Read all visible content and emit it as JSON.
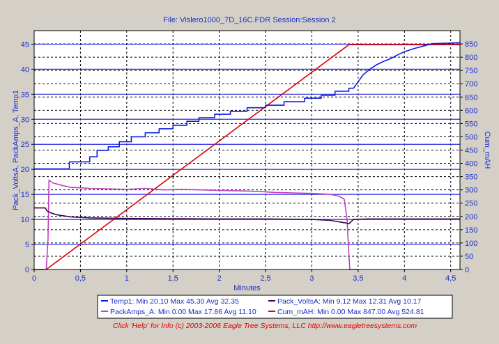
{
  "title": "File: Vislero1000_7D_16C.FDR   Session:Session 2",
  "footer": "Click 'Help' for Info  (c) 2003-2006 Eagle Tree Systems, LLC     http://www.eagletreesystems.com",
  "chart_data": {
    "type": "line",
    "xlabel": "Minutes",
    "ylabel_left": "Pack_VoltsA, PackAmps_A, Temp1",
    "ylabel_right": "Cum_mAH",
    "xlim": [
      0,
      4.6
    ],
    "ylim_left": [
      0,
      47.7
    ],
    "ylim_right": [
      0,
      900
    ],
    "x_ticks": [
      0,
      0.5,
      1,
      1.5,
      2,
      2.5,
      3,
      3.5,
      4,
      4.5
    ],
    "x_tick_labels": [
      "0",
      "0,5",
      "1",
      "1,5",
      "2",
      "2,5",
      "3",
      "3,5",
      "4",
      "4,5"
    ],
    "y_left_ticks": [
      0,
      5,
      10,
      15,
      20,
      25,
      30,
      35,
      40,
      45
    ],
    "y_right_ticks": [
      0,
      50,
      100,
      150,
      200,
      250,
      300,
      350,
      400,
      450,
      500,
      550,
      600,
      650,
      700,
      750,
      800,
      850
    ],
    "grid": true,
    "legend_position": "bottom",
    "colors": {
      "plot_bg": "#ffffff",
      "axis_text": "#1a2fc8",
      "major_grid": "#2a2ae0",
      "minor_grid": "#000000",
      "frame": "#000000"
    },
    "series": [
      {
        "name": "Temp1",
        "legend": "Temp1:  Min 20.10 Max 45.30 Avg 32.35",
        "color": "#0a1ee6",
        "axis": "left",
        "step": true,
        "points": [
          [
            0,
            20.1
          ],
          [
            0.38,
            20.1
          ],
          [
            0.38,
            21.5
          ],
          [
            0.6,
            21.5
          ],
          [
            0.6,
            22.5
          ],
          [
            0.68,
            22.5
          ],
          [
            0.68,
            23.8
          ],
          [
            0.8,
            23.8
          ],
          [
            0.8,
            24.5
          ],
          [
            0.92,
            24.5
          ],
          [
            0.92,
            25.5
          ],
          [
            1.05,
            25.5
          ],
          [
            1.05,
            26.5
          ],
          [
            1.2,
            26.5
          ],
          [
            1.2,
            27.3
          ],
          [
            1.35,
            27.3
          ],
          [
            1.35,
            28.1
          ],
          [
            1.5,
            28.1
          ],
          [
            1.5,
            28.8
          ],
          [
            1.65,
            28.8
          ],
          [
            1.65,
            29.6
          ],
          [
            1.78,
            29.6
          ],
          [
            1.78,
            30.3
          ],
          [
            1.95,
            30.3
          ],
          [
            1.95,
            31
          ],
          [
            2.12,
            31
          ],
          [
            2.12,
            31.6
          ],
          [
            2.3,
            31.6
          ],
          [
            2.3,
            32.3
          ],
          [
            2.5,
            32.3
          ],
          [
            2.5,
            32.8
          ],
          [
            2.7,
            32.8
          ],
          [
            2.7,
            33.5
          ],
          [
            2.92,
            33.5
          ],
          [
            2.92,
            34.2
          ],
          [
            3.1,
            34.2
          ],
          [
            3.1,
            34.8
          ],
          [
            3.25,
            34.8
          ],
          [
            3.25,
            35.6
          ],
          [
            3.4,
            35.6
          ],
          [
            3.4,
            36.2
          ],
          [
            3.45,
            36.2
          ],
          [
            3.48,
            37
          ],
          [
            3.5,
            37.5
          ],
          [
            3.52,
            38
          ],
          [
            3.55,
            38.8
          ],
          [
            3.6,
            39.6
          ],
          [
            3.65,
            40.3
          ],
          [
            3.7,
            40.9
          ],
          [
            3.78,
            41.6
          ],
          [
            3.85,
            42.1
          ],
          [
            3.92,
            42.8
          ],
          [
            4.0,
            43.5
          ],
          [
            4.1,
            44.1
          ],
          [
            4.2,
            44.6
          ],
          [
            4.3,
            45.1
          ],
          [
            4.6,
            45.3
          ]
        ]
      },
      {
        "name": "Pack_VoltsA",
        "legend": "Pack_VoltsA:  Min 9.12 Max 12.31 Avg 10.17",
        "color": "#3a0050",
        "axis": "left",
        "step": false,
        "points": [
          [
            0,
            12.3
          ],
          [
            0.12,
            12.3
          ],
          [
            0.14,
            11.7
          ],
          [
            0.18,
            11.3
          ],
          [
            0.25,
            10.9
          ],
          [
            0.4,
            10.5
          ],
          [
            0.6,
            10.3
          ],
          [
            1.0,
            10.2
          ],
          [
            1.5,
            10.15
          ],
          [
            2.0,
            10.1
          ],
          [
            2.5,
            10.1
          ],
          [
            3.0,
            10.0
          ],
          [
            3.2,
            9.8
          ],
          [
            3.3,
            9.5
          ],
          [
            3.38,
            9.25
          ],
          [
            3.4,
            9.12
          ],
          [
            3.42,
            9.5
          ],
          [
            3.45,
            10.0
          ],
          [
            3.6,
            10.1
          ],
          [
            4.6,
            10.1
          ]
        ]
      },
      {
        "name": "PackAmps_A",
        "legend": "PackAmps_A:  Min 0.00 Max 17.86 Avg 11.10",
        "color": "#c040c0",
        "axis": "left",
        "step": false,
        "points": [
          [
            0.13,
            0
          ],
          [
            0.15,
            6
          ],
          [
            0.16,
            17.86
          ],
          [
            0.2,
            17.3
          ],
          [
            0.3,
            16.8
          ],
          [
            0.4,
            16.4
          ],
          [
            0.6,
            16.2
          ],
          [
            0.8,
            16.1
          ],
          [
            1.0,
            16.0
          ],
          [
            1.2,
            16.2
          ],
          [
            1.4,
            15.9
          ],
          [
            1.6,
            16.0
          ],
          [
            1.8,
            15.9
          ],
          [
            2.0,
            15.8
          ],
          [
            2.2,
            15.7
          ],
          [
            2.4,
            15.6
          ],
          [
            2.6,
            15.4
          ],
          [
            2.8,
            15.3
          ],
          [
            3.0,
            15.2
          ],
          [
            3.2,
            15.0
          ],
          [
            3.3,
            14.6
          ],
          [
            3.35,
            14.0
          ],
          [
            3.38,
            10.0
          ],
          [
            3.4,
            3.0
          ],
          [
            3.41,
            0
          ],
          [
            3.5,
            0
          ]
        ]
      },
      {
        "name": "Cum_mAH",
        "legend": "Cum_mAH:  Min 0.00 Max 847.00 Avg 524.81",
        "color": "#e00000",
        "axis": "right",
        "step": false,
        "points": [
          [
            0,
            0
          ],
          [
            0.13,
            0
          ],
          [
            3.4,
            847
          ],
          [
            4.6,
            847
          ]
        ]
      }
    ]
  }
}
